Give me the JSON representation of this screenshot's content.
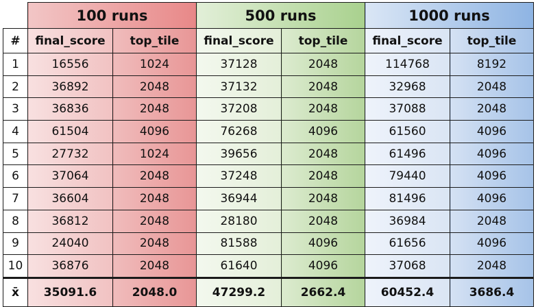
{
  "table": {
    "corner": "",
    "groups": [
      "100 runs",
      "500 runs",
      "1000 runs"
    ],
    "index_header": "#",
    "sub_headers": [
      "final_score",
      "top_tile",
      "final_score",
      "top_tile",
      "final_score",
      "top_tile"
    ],
    "rows": [
      [
        "1",
        "16556",
        "1024",
        "37128",
        "2048",
        "114768",
        "8192"
      ],
      [
        "2",
        "36892",
        "2048",
        "37132",
        "2048",
        "32968",
        "2048"
      ],
      [
        "3",
        "36836",
        "2048",
        "37208",
        "2048",
        "37088",
        "2048"
      ],
      [
        "4",
        "61504",
        "4096",
        "76268",
        "4096",
        "61560",
        "4096"
      ],
      [
        "5",
        "27732",
        "1024",
        "39656",
        "2048",
        "61496",
        "4096"
      ],
      [
        "6",
        "37064",
        "2048",
        "37248",
        "2048",
        "79440",
        "4096"
      ],
      [
        "7",
        "36604",
        "2048",
        "36944",
        "2048",
        "81496",
        "4096"
      ],
      [
        "8",
        "36812",
        "2048",
        "28180",
        "2048",
        "36984",
        "2048"
      ],
      [
        "9",
        "24040",
        "2048",
        "81588",
        "4096",
        "61656",
        "4096"
      ],
      [
        "10",
        "36876",
        "2048",
        "61640",
        "4096",
        "37068",
        "2048"
      ]
    ],
    "mean_row": [
      "x̄",
      "35091.6",
      "2048.0",
      "47299.2",
      "2662.4",
      "60452.4",
      "3686.4"
    ]
  },
  "colors": {
    "group_100": "#e88888",
    "group_500": "#a9d18e",
    "group_1000": "#8eb4e3"
  }
}
